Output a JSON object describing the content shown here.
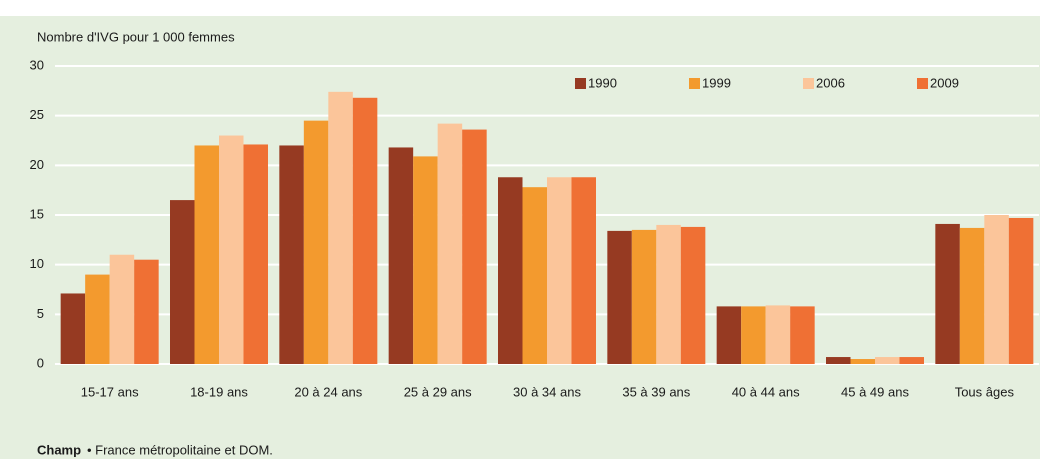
{
  "chart_data": {
    "type": "bar",
    "y_label": "Nombre d'IVG pour 1 000 femmes",
    "categories": [
      "15-17 ans",
      "18-19 ans",
      "20 à 24 ans",
      "25 à 29 ans",
      "30 à 34 ans",
      "35 à 39 ans",
      "40 à 44 ans",
      "45 à 49 ans",
      "Tous âges"
    ],
    "series": [
      {
        "name": "1990",
        "color": "#963a22",
        "values": [
          7.1,
          16.5,
          22,
          21.8,
          18.8,
          13.4,
          5.8,
          0.7,
          14.1
        ]
      },
      {
        "name": "1999",
        "color": "#f39a2e",
        "values": [
          9,
          22,
          24.5,
          20.9,
          17.8,
          13.5,
          5.8,
          0.5,
          13.7
        ]
      },
      {
        "name": "2006",
        "color": "#fbc59a",
        "values": [
          11,
          23,
          27.4,
          24.2,
          18.8,
          14,
          5.9,
          0.7,
          15
        ]
      },
      {
        "name": "2009",
        "color": "#ef7034",
        "values": [
          10.5,
          22.1,
          26.8,
          23.6,
          18.8,
          13.8,
          5.8,
          0.7,
          14.7
        ]
      }
    ],
    "ylim": [
      0,
      30
    ],
    "yticks": [
      0,
      5,
      10,
      15,
      20,
      25,
      30
    ],
    "grid": true,
    "legend": "top-right",
    "note": {
      "label": "Champ",
      "text": "• France métropolitaine et DOM."
    }
  }
}
